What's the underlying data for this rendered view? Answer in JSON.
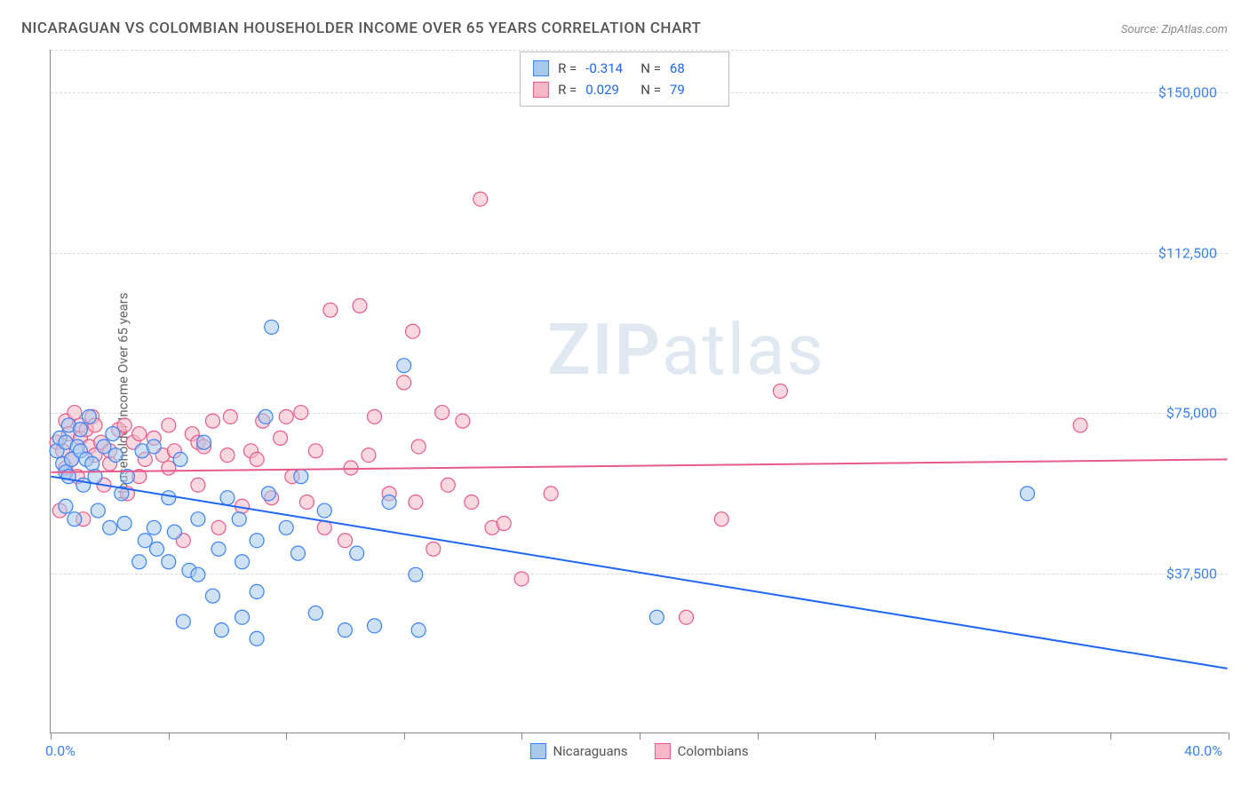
{
  "title": "NICARAGUAN VS COLOMBIAN HOUSEHOLDER INCOME OVER 65 YEARS CORRELATION CHART",
  "source": "Source: ZipAtlas.com",
  "yaxis_title": "Householder Income Over 65 years",
  "watermark_bold": "ZIP",
  "watermark_rest": "atlas",
  "chart": {
    "type": "scatter",
    "xlim": [
      0,
      40
    ],
    "ylim": [
      0,
      160000
    ],
    "x_label_min": "0.0%",
    "x_label_max": "40.0%",
    "x_tick_positions": [
      0,
      4,
      8,
      12,
      16,
      20,
      24,
      28,
      32,
      36,
      40
    ],
    "y_gridlines": [
      37500,
      75000,
      112500,
      150000
    ],
    "y_tick_labels": [
      "$37,500",
      "$75,000",
      "$112,500",
      "$150,000"
    ],
    "background_color": "#ffffff",
    "grid_color": "#d8d8d8",
    "axis_color": "#888888",
    "label_color": "#3b82f6",
    "title_color": "#555555",
    "title_fontsize": 17,
    "tick_fontsize": 16,
    "marker_radius": 8,
    "marker_opacity": 0.55,
    "line_width": 2
  },
  "series": [
    {
      "name": "Nicaraguans",
      "color_fill": "#a8c8ec",
      "color_stroke": "#3b82f6",
      "line_color": "#1e66f5",
      "R": "-0.314",
      "N": "68",
      "regression": {
        "y_at_x0": 60000,
        "y_at_x40": 15000
      },
      "points": [
        [
          0.2,
          66000
        ],
        [
          0.3,
          69000
        ],
        [
          0.4,
          63000
        ],
        [
          0.5,
          68000
        ],
        [
          0.5,
          53000
        ],
        [
          0.5,
          61000
        ],
        [
          0.6,
          72000
        ],
        [
          0.6,
          60000
        ],
        [
          0.7,
          64000
        ],
        [
          0.8,
          50000
        ],
        [
          0.9,
          67000
        ],
        [
          1.0,
          71000
        ],
        [
          1.0,
          66000
        ],
        [
          1.1,
          58000
        ],
        [
          1.2,
          64000
        ],
        [
          1.3,
          74000
        ],
        [
          1.4,
          63000
        ],
        [
          1.5,
          60000
        ],
        [
          1.6,
          52000
        ],
        [
          1.8,
          67000
        ],
        [
          2.0,
          48000
        ],
        [
          2.1,
          70000
        ],
        [
          2.2,
          65000
        ],
        [
          2.4,
          56000
        ],
        [
          2.5,
          49000
        ],
        [
          2.6,
          60000
        ],
        [
          3.0,
          40000
        ],
        [
          3.1,
          66000
        ],
        [
          3.2,
          45000
        ],
        [
          3.5,
          48000
        ],
        [
          3.5,
          67000
        ],
        [
          3.6,
          43000
        ],
        [
          4.0,
          55000
        ],
        [
          4.0,
          40000
        ],
        [
          4.2,
          47000
        ],
        [
          4.4,
          64000
        ],
        [
          4.5,
          26000
        ],
        [
          4.7,
          38000
        ],
        [
          5.0,
          50000
        ],
        [
          5.0,
          37000
        ],
        [
          5.2,
          68000
        ],
        [
          5.5,
          32000
        ],
        [
          5.7,
          43000
        ],
        [
          5.8,
          24000
        ],
        [
          6.0,
          55000
        ],
        [
          6.4,
          50000
        ],
        [
          6.5,
          27000
        ],
        [
          6.5,
          40000
        ],
        [
          7.0,
          45000
        ],
        [
          7.0,
          22000
        ],
        [
          7.0,
          33000
        ],
        [
          7.3,
          74000
        ],
        [
          7.4,
          56000
        ],
        [
          7.5,
          95000
        ],
        [
          8.0,
          48000
        ],
        [
          8.4,
          42000
        ],
        [
          8.5,
          60000
        ],
        [
          9.0,
          28000
        ],
        [
          9.3,
          52000
        ],
        [
          10.0,
          24000
        ],
        [
          10.4,
          42000
        ],
        [
          11.0,
          25000
        ],
        [
          11.5,
          54000
        ],
        [
          12.0,
          86000
        ],
        [
          12.4,
          37000
        ],
        [
          12.5,
          24000
        ],
        [
          20.6,
          27000
        ],
        [
          33.2,
          56000
        ]
      ]
    },
    {
      "name": "Colombians",
      "color_fill": "#f5b8c6",
      "color_stroke": "#e75a8c",
      "line_color": "#e75a8c",
      "R": "0.029",
      "N": "79",
      "regression": {
        "y_at_x0": 61000,
        "y_at_x40": 64000
      },
      "points": [
        [
          0.2,
          68000
        ],
        [
          0.3,
          52000
        ],
        [
          0.4,
          66000
        ],
        [
          0.5,
          62000
        ],
        [
          0.5,
          73000
        ],
        [
          0.6,
          70000
        ],
        [
          0.7,
          64000
        ],
        [
          0.8,
          75000
        ],
        [
          0.9,
          60000
        ],
        [
          1.0,
          69000
        ],
        [
          1.0,
          72000
        ],
        [
          1.1,
          50000
        ],
        [
          1.2,
          71000
        ],
        [
          1.3,
          67000
        ],
        [
          1.4,
          74000
        ],
        [
          1.5,
          65000
        ],
        [
          1.5,
          72000
        ],
        [
          1.7,
          68000
        ],
        [
          1.8,
          58000
        ],
        [
          2.0,
          63000
        ],
        [
          2.0,
          66000
        ],
        [
          2.3,
          71000
        ],
        [
          2.5,
          72000
        ],
        [
          2.6,
          56000
        ],
        [
          2.8,
          68000
        ],
        [
          3.0,
          70000
        ],
        [
          3.0,
          60000
        ],
        [
          3.2,
          64000
        ],
        [
          3.5,
          69000
        ],
        [
          3.8,
          65000
        ],
        [
          4.0,
          72000
        ],
        [
          4.0,
          62000
        ],
        [
          4.2,
          66000
        ],
        [
          4.5,
          45000
        ],
        [
          4.8,
          70000
        ],
        [
          5.0,
          68000
        ],
        [
          5.0,
          58000
        ],
        [
          5.2,
          67000
        ],
        [
          5.5,
          73000
        ],
        [
          5.7,
          48000
        ],
        [
          6.0,
          65000
        ],
        [
          6.1,
          74000
        ],
        [
          6.5,
          53000
        ],
        [
          6.8,
          66000
        ],
        [
          7.0,
          64000
        ],
        [
          7.2,
          73000
        ],
        [
          7.5,
          55000
        ],
        [
          7.8,
          69000
        ],
        [
          8.0,
          74000
        ],
        [
          8.2,
          60000
        ],
        [
          8.5,
          75000
        ],
        [
          8.7,
          54000
        ],
        [
          9.0,
          66000
        ],
        [
          9.3,
          48000
        ],
        [
          9.5,
          99000
        ],
        [
          10.0,
          45000
        ],
        [
          10.2,
          62000
        ],
        [
          10.5,
          100000
        ],
        [
          10.8,
          65000
        ],
        [
          11.0,
          74000
        ],
        [
          11.5,
          56000
        ],
        [
          12.0,
          82000
        ],
        [
          12.3,
          94000
        ],
        [
          12.4,
          54000
        ],
        [
          12.5,
          67000
        ],
        [
          13.0,
          43000
        ],
        [
          13.3,
          75000
        ],
        [
          13.5,
          58000
        ],
        [
          14.0,
          73000
        ],
        [
          14.3,
          54000
        ],
        [
          14.6,
          125000
        ],
        [
          15.0,
          48000
        ],
        [
          15.4,
          49000
        ],
        [
          16.0,
          36000
        ],
        [
          17.0,
          56000
        ],
        [
          21.6,
          27000
        ],
        [
          22.8,
          50000
        ],
        [
          24.8,
          80000
        ],
        [
          35.0,
          72000
        ]
      ]
    }
  ],
  "stats_box": {
    "R_label": "R =",
    "N_label": "N ="
  },
  "bottom_legend": {
    "items": [
      "Nicaraguans",
      "Colombians"
    ]
  }
}
